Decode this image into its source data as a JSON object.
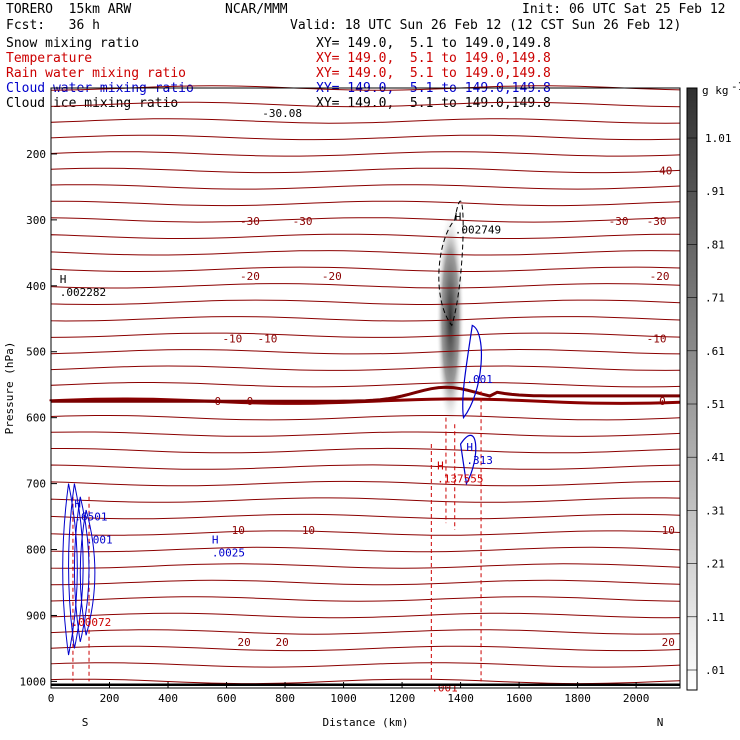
{
  "header": {
    "model": "TORERO  15km ARW",
    "org": "NCAR/MMM",
    "init": "Init: 06 UTC Sat 25 Feb 12",
    "fcst": "Fcst:   36 h",
    "valid": "Valid: 18 UTC Sun 26 Feb 12 (12 CST Sun 26 Feb 12)",
    "fields": [
      {
        "name": "Snow mixing ratio",
        "xy": "XY= 149.0,  5.1 to 149.0,149.8",
        "color": "#000000"
      },
      {
        "name": "Temperature",
        "xy": "XY= 149.0,  5.1 to 149.0,149.8",
        "color": "#cc0000"
      },
      {
        "name": "Rain water mixing ratio",
        "xy": "XY= 149.0,  5.1 to 149.0,149.8",
        "color": "#cc0000"
      },
      {
        "name": "Cloud water mixing ratio",
        "xy": "XY= 149.0,  5.1 to 149.0,149.8",
        "color": "#0000cc"
      },
      {
        "name": "Cloud ice mixing ratio",
        "xy": "XY= 149.0,  5.1 to 149.0,149.8",
        "color": "#000000"
      }
    ]
  },
  "chart_data": {
    "type": "contour",
    "xlabel": "Distance (km)",
    "ylabel": "Pressure (hPa)",
    "xlim": [
      0,
      2150
    ],
    "ylim": [
      1010,
      100
    ],
    "x_ticks": [
      0,
      200,
      400,
      600,
      800,
      1000,
      1200,
      1400,
      1600,
      1800,
      2000
    ],
    "y_ticks": [
      200,
      300,
      400,
      500,
      600,
      700,
      800,
      900,
      1000
    ],
    "end_labels": {
      "left": "S",
      "right": "N"
    },
    "colorbar": {
      "unit": "g kg",
      "unit_sup": "-1",
      "ticks": [
        ".01",
        ".11",
        ".21",
        ".31",
        ".41",
        ".51",
        ".61",
        ".71",
        ".81",
        ".91",
        "1.01"
      ]
    },
    "temperature_contours": [
      {
        "label": "-30",
        "p": 302,
        "label_x": [
          680,
          860,
          2070,
          1940
        ]
      },
      {
        "label": "-20",
        "p": 385,
        "label_x": [
          680,
          960,
          2080
        ]
      },
      {
        "label": "-10",
        "p": 480,
        "label_x": [
          620,
          740,
          2070
        ]
      },
      {
        "label": "0",
        "p": 575,
        "label_x": [
          570,
          680,
          2090
        ]
      },
      {
        "label": "10",
        "p": 770,
        "label_x": [
          640,
          880,
          2110
        ]
      },
      {
        "label": "20",
        "p": 940,
        "label_x": [
          660,
          790,
          2110
        ]
      },
      {
        "label": "-40",
        "p": 225,
        "label_x": [
          2090
        ]
      }
    ],
    "top_label": {
      "text": "-30.08",
      "x": 790,
      "p": 138
    },
    "extrema": [
      {
        "text": "H",
        "value": ".002282",
        "x": 30,
        "p": 405,
        "color": "#000000"
      },
      {
        "text": "H",
        "value": ".002749",
        "x": 1380,
        "p": 310,
        "color": "#000000"
      },
      {
        "text": "",
        "value": ".001",
        "x": 1420,
        "p": 537,
        "color": "#0000cc"
      },
      {
        "text": "H",
        "value": ".313",
        "x": 1420,
        "p": 660,
        "color": "#0000cc"
      },
      {
        "text": "H",
        "value": ".137555",
        "x": 1320,
        "p": 688,
        "color": "#cc0000"
      },
      {
        "text": "H",
        "value": ".6501",
        "x": 80,
        "p": 745,
        "color": "#0000cc"
      },
      {
        "text": "",
        "value": ".001",
        "x": 120,
        "p": 780,
        "color": "#0000cc"
      },
      {
        "text": "H",
        "value": ".0025",
        "x": 550,
        "p": 800,
        "color": "#0000cc"
      },
      {
        "text": "",
        "value": ".00072",
        "x": 70,
        "p": 905,
        "color": "#cc0000"
      },
      {
        "text": "",
        "value": ".001",
        "x": 1300,
        "p": 1005,
        "color": "#cc0000"
      }
    ]
  }
}
